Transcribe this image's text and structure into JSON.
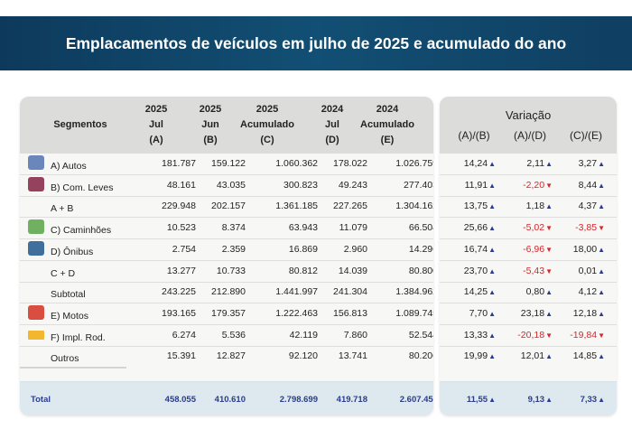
{
  "title": "Emplacamentos de veículos em julho de 2025 e acumulado do ano",
  "headers": {
    "segmentos": "Segmentos",
    "cols": [
      [
        "2025",
        "Jul",
        "(A)"
      ],
      [
        "2025",
        "Jun",
        "(B)"
      ],
      [
        "2025",
        "Acumulado",
        "(C)"
      ],
      [
        "2024",
        "Jul",
        "(D)"
      ],
      [
        "2024",
        "Acumulado",
        "(E)"
      ]
    ],
    "variacao": "Variação",
    "var_cols": [
      "(A)/(B)",
      "(A)/(D)",
      "(C)/(E)"
    ]
  },
  "colors": {
    "banner": "#124f74",
    "up": "#2b3c8c",
    "down": "#d9262a"
  },
  "rows": [
    {
      "label": "A) Autos",
      "icon": "car-icon",
      "icon_color": "#5b79b5",
      "values": [
        "181.787",
        "159.122",
        "1.060.362",
        "178.022",
        "1.026.759"
      ],
      "var": [
        "14,24",
        "2,11",
        "3,27"
      ]
    },
    {
      "label": "B) Com. Leves",
      "icon": "pickup-icon",
      "icon_color": "#8a2d4f",
      "values": [
        "48.161",
        "43.035",
        "300.823",
        "49.243",
        "277.403"
      ],
      "var": [
        "11,91",
        "-2,20",
        "8,44"
      ]
    },
    {
      "label": "A + B",
      "icon": null,
      "values": [
        "229.948",
        "202.157",
        "1.361.185",
        "227.265",
        "1.304.162"
      ],
      "var": [
        "13,75",
        "1,18",
        "4,37"
      ]
    },
    {
      "label": "C) Caminhões",
      "icon": "truck-icon",
      "icon_color": "#5fa850",
      "values": [
        "10.523",
        "8.374",
        "63.943",
        "11.079",
        "66.504"
      ],
      "var": [
        "25,66",
        "-5,02",
        "-3,85"
      ]
    },
    {
      "label": "D) Ônibus",
      "icon": "bus-icon",
      "icon_color": "#2a5f94",
      "values": [
        "2.754",
        "2.359",
        "16.869",
        "2.960",
        "14.296"
      ],
      "var": [
        "16,74",
        "-6,96",
        "18,00"
      ]
    },
    {
      "label": "C + D",
      "icon": null,
      "values": [
        "13.277",
        "10.733",
        "80.812",
        "14.039",
        "80.800"
      ],
      "var": [
        "23,70",
        "-5,43",
        "0,01"
      ]
    },
    {
      "label": "Subtotal",
      "icon": null,
      "values": [
        "243.225",
        "212.890",
        "1.441.997",
        "241.304",
        "1.384.962"
      ],
      "var": [
        "14,25",
        "0,80",
        "4,12"
      ]
    },
    {
      "label": "E) Motos",
      "icon": "motorcycle-icon",
      "icon_color": "#d63a2e",
      "values": [
        "193.165",
        "179.357",
        "1.222.463",
        "156.813",
        "1.089.745"
      ],
      "var": [
        "7,70",
        "23,18",
        "12,18"
      ]
    },
    {
      "label": "F) Impl. Rod.",
      "icon": "trailer-icon",
      "icon_color": "#f2b72e",
      "values": [
        "6.274",
        "5.536",
        "42.119",
        "7.860",
        "52.544"
      ],
      "var": [
        "13,33",
        "-20,18",
        "-19,84"
      ]
    },
    {
      "label": "Outros",
      "icon": null,
      "values": [
        "15.391",
        "12.827",
        "92.120",
        "13.741",
        "80.206"
      ],
      "var": [
        "19,99",
        "12,01",
        "14,85"
      ]
    }
  ],
  "total": {
    "label": "Total",
    "values": [
      "458.055",
      "410.610",
      "2.798.699",
      "419.718",
      "2.607.457"
    ],
    "var": [
      "11,55",
      "9,13",
      "7,33"
    ]
  }
}
